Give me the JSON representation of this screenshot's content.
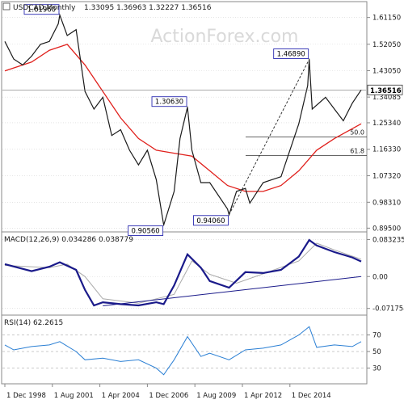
{
  "chart_data": {
    "type": "line",
    "watermark": "ActionForex.com",
    "colors": {
      "price": "#1a1a1a",
      "sma": "#e0201c",
      "macd": "#1a1a8a",
      "signal": "#aaaaaa",
      "rsi": "#2a7fd4",
      "trendline": "#1a1a8a",
      "grid": "#d4d4d4",
      "frame": "#888888"
    },
    "x_tick_labels": [
      "1 Dec 1998",
      "1 Aug 2001",
      "1 Apr 2004",
      "1 Dec 2006",
      "1 Aug 2009",
      "1 Apr 2012",
      "1 Dec 2014"
    ],
    "price_panel": {
      "header_symbol": "USDCAD,Monthly",
      "header_ohlc": "1.33095 1.36963 1.32227 1.36516",
      "y_tick_labels": [
        "1.61150",
        "1.52050",
        "1.43050",
        "1.34085",
        "1.25340",
        "1.16330",
        "1.07320",
        "0.98310",
        "0.89500"
      ],
      "ylim": [
        0.885,
        1.66
      ],
      "last_value": 1.36516,
      "last_value_label": "1.36516",
      "points": [
        {
          "date": "1998-12",
          "value": 1.53
        },
        {
          "date": "1999-06",
          "value": 1.47
        },
        {
          "date": "1999-12",
          "value": 1.45
        },
        {
          "date": "2000-06",
          "value": 1.48
        },
        {
          "date": "2000-12",
          "value": 1.52
        },
        {
          "date": "2001-06",
          "value": 1.53
        },
        {
          "date": "2001-12",
          "value": 1.59
        },
        {
          "date": "2002-01",
          "value": 1.6196
        },
        {
          "date": "2002-06",
          "value": 1.55
        },
        {
          "date": "2002-12",
          "value": 1.57
        },
        {
          "date": "2003-06",
          "value": 1.36
        },
        {
          "date": "2003-12",
          "value": 1.3
        },
        {
          "date": "2004-06",
          "value": 1.34
        },
        {
          "date": "2004-12",
          "value": 1.21
        },
        {
          "date": "2005-06",
          "value": 1.23
        },
        {
          "date": "2005-12",
          "value": 1.16
        },
        {
          "date": "2006-06",
          "value": 1.11
        },
        {
          "date": "2006-12",
          "value": 1.16
        },
        {
          "date": "2007-06",
          "value": 1.06
        },
        {
          "date": "2007-11",
          "value": 0.9056
        },
        {
          "date": "2008-06",
          "value": 1.02
        },
        {
          "date": "2008-10",
          "value": 1.2
        },
        {
          "date": "2009-03",
          "value": 1.3063
        },
        {
          "date": "2009-06",
          "value": 1.16
        },
        {
          "date": "2009-12",
          "value": 1.05
        },
        {
          "date": "2010-06",
          "value": 1.05
        },
        {
          "date": "2011-06",
          "value": 0.96
        },
        {
          "date": "2011-07",
          "value": 0.9406
        },
        {
          "date": "2011-12",
          "value": 1.02
        },
        {
          "date": "2012-06",
          "value": 1.03
        },
        {
          "date": "2012-09",
          "value": 0.98
        },
        {
          "date": "2013-06",
          "value": 1.05
        },
        {
          "date": "2013-12",
          "value": 1.06
        },
        {
          "date": "2014-06",
          "value": 1.07
        },
        {
          "date": "2014-12",
          "value": 1.16
        },
        {
          "date": "2015-06",
          "value": 1.25
        },
        {
          "date": "2015-12",
          "value": 1.38
        },
        {
          "date": "2016-01",
          "value": 1.4689
        },
        {
          "date": "2016-03",
          "value": 1.3
        },
        {
          "date": "2016-12",
          "value": 1.34
        },
        {
          "date": "2017-06",
          "value": 1.3
        },
        {
          "date": "2017-12",
          "value": 1.26
        },
        {
          "date": "2018-06",
          "value": 1.32
        },
        {
          "date": "2018-12",
          "value": 1.3652
        }
      ],
      "sma": [
        {
          "date": "1998-12",
          "value": 1.43
        },
        {
          "date": "2000-06",
          "value": 1.46
        },
        {
          "date": "2001-06",
          "value": 1.5
        },
        {
          "date": "2002-06",
          "value": 1.52
        },
        {
          "date": "2003-06",
          "value": 1.45
        },
        {
          "date": "2004-06",
          "value": 1.36
        },
        {
          "date": "2005-06",
          "value": 1.27
        },
        {
          "date": "2006-06",
          "value": 1.2
        },
        {
          "date": "2007-06",
          "value": 1.16
        },
        {
          "date": "2008-06",
          "value": 1.15
        },
        {
          "date": "2009-06",
          "value": 1.14
        },
        {
          "date": "2010-06",
          "value": 1.09
        },
        {
          "date": "2011-06",
          "value": 1.04
        },
        {
          "date": "2012-06",
          "value": 1.02
        },
        {
          "date": "2013-06",
          "value": 1.02
        },
        {
          "date": "2014-06",
          "value": 1.04
        },
        {
          "date": "2015-06",
          "value": 1.09
        },
        {
          "date": "2016-06",
          "value": 1.16
        },
        {
          "date": "2017-06",
          "value": 1.2
        },
        {
          "date": "2018-12",
          "value": 1.25
        }
      ],
      "annotations": [
        {
          "label": "1.61960",
          "date": "2002-01",
          "value": 1.6196
        },
        {
          "label": "0.90560",
          "date": "2007-11",
          "value": 0.9056
        },
        {
          "label": "1.30630",
          "date": "2009-03",
          "value": 1.3063
        },
        {
          "label": "0.94060",
          "date": "2011-07",
          "value": 0.9406
        },
        {
          "label": "1.46890",
          "date": "2016-01",
          "value": 1.4689
        }
      ],
      "fib_levels": [
        {
          "label": "50.0",
          "value": 1.2048
        },
        {
          "label": "61.8",
          "value": 1.1424
        }
      ],
      "projection_line": {
        "from": {
          "date": "2011-07",
          "value": 0.9406
        },
        "to": {
          "date": "2016-01",
          "value": 1.4689
        }
      }
    },
    "macd_panel": {
      "header": "MACD(12,26,9) 0.034286 0.038779",
      "y_tick_labels": [
        "0.083235",
        "0.00",
        "-0.071754"
      ],
      "ylim": [
        -0.085,
        0.095
      ],
      "zero_line": 0.0,
      "macd": [
        {
          "date": "1998-12",
          "value": 0.028
        },
        {
          "date": "2000-06",
          "value": 0.012
        },
        {
          "date": "2001-06",
          "value": 0.022
        },
        {
          "date": "2002-01",
          "value": 0.032
        },
        {
          "date": "2002-12",
          "value": 0.015
        },
        {
          "date": "2003-06",
          "value": -0.03
        },
        {
          "date": "2003-12",
          "value": -0.065
        },
        {
          "date": "2004-06",
          "value": -0.058
        },
        {
          "date": "2005-06",
          "value": -0.062
        },
        {
          "date": "2006-06",
          "value": -0.065
        },
        {
          "date": "2007-06",
          "value": -0.058
        },
        {
          "date": "2007-11",
          "value": -0.062
        },
        {
          "date": "2008-06",
          "value": -0.02
        },
        {
          "date": "2009-03",
          "value": 0.05
        },
        {
          "date": "2009-12",
          "value": 0.02
        },
        {
          "date": "2010-06",
          "value": -0.01
        },
        {
          "date": "2011-07",
          "value": -0.025
        },
        {
          "date": "2012-06",
          "value": 0.01
        },
        {
          "date": "2013-06",
          "value": 0.008
        },
        {
          "date": "2014-06",
          "value": 0.015
        },
        {
          "date": "2015-06",
          "value": 0.045
        },
        {
          "date": "2016-01",
          "value": 0.082
        },
        {
          "date": "2016-06",
          "value": 0.07
        },
        {
          "date": "2017-06",
          "value": 0.055
        },
        {
          "date": "2018-06",
          "value": 0.043
        },
        {
          "date": "2018-12",
          "value": 0.034
        }
      ],
      "signal": [
        {
          "date": "1998-12",
          "value": 0.025
        },
        {
          "date": "2001-06",
          "value": 0.02
        },
        {
          "date": "2002-06",
          "value": 0.028
        },
        {
          "date": "2003-06",
          "value": 0.0
        },
        {
          "date": "2004-06",
          "value": -0.05
        },
        {
          "date": "2006-06",
          "value": -0.06
        },
        {
          "date": "2008-06",
          "value": -0.04
        },
        {
          "date": "2009-06",
          "value": 0.035
        },
        {
          "date": "2010-06",
          "value": 0.005
        },
        {
          "date": "2011-12",
          "value": -0.015
        },
        {
          "date": "2013-06",
          "value": 0.006
        },
        {
          "date": "2015-06",
          "value": 0.035
        },
        {
          "date": "2016-06",
          "value": 0.075
        },
        {
          "date": "2017-06",
          "value": 0.06
        },
        {
          "date": "2018-12",
          "value": 0.039
        }
      ],
      "trendline": {
        "from": {
          "date": "2004-06",
          "value": -0.066
        },
        "to": {
          "date": "2018-12",
          "value": 0.0
        }
      }
    },
    "rsi_panel": {
      "header": "RSI(14) 62.2615",
      "y_tick_labels": [
        "70",
        "50",
        "30"
      ],
      "ylim": [
        12,
        92
      ],
      "levels": [
        70,
        30
      ],
      "rsi": [
        {
          "date": "1998-12",
          "value": 58
        },
        {
          "date": "1999-06",
          "value": 52
        },
        {
          "date": "2000-06",
          "value": 56
        },
        {
          "date": "2001-06",
          "value": 58
        },
        {
          "date": "2002-01",
          "value": 62
        },
        {
          "date": "2002-12",
          "value": 50
        },
        {
          "date": "2003-06",
          "value": 40
        },
        {
          "date": "2004-06",
          "value": 42
        },
        {
          "date": "2005-06",
          "value": 38
        },
        {
          "date": "2006-06",
          "value": 40
        },
        {
          "date": "2007-06",
          "value": 30
        },
        {
          "date": "2007-11",
          "value": 22
        },
        {
          "date": "2008-06",
          "value": 40
        },
        {
          "date": "2009-03",
          "value": 68
        },
        {
          "date": "2009-12",
          "value": 44
        },
        {
          "date": "2010-06",
          "value": 48
        },
        {
          "date": "2011-07",
          "value": 40
        },
        {
          "date": "2012-06",
          "value": 52
        },
        {
          "date": "2013-06",
          "value": 54
        },
        {
          "date": "2014-06",
          "value": 58
        },
        {
          "date": "2015-06",
          "value": 70
        },
        {
          "date": "2016-01",
          "value": 80
        },
        {
          "date": "2016-06",
          "value": 55
        },
        {
          "date": "2017-06",
          "value": 58
        },
        {
          "date": "2018-06",
          "value": 56
        },
        {
          "date": "2018-12",
          "value": 62
        }
      ]
    }
  }
}
